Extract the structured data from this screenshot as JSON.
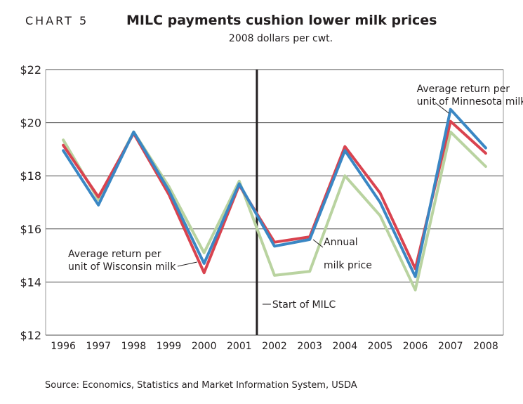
{
  "header": {
    "chart_label": "CHART 5",
    "title": "MILC payments cushion lower milk prices",
    "subtitle": "2008 dollars per cwt."
  },
  "source": "Source: Economics, Statistics and Market Information System, USDA",
  "annotations": {
    "minnesota": [
      "Average return per",
      "unit of Minnesota milk"
    ],
    "wisconsin": [
      "Average return per",
      "unit of Wisconsin milk"
    ],
    "annual": [
      "Annual",
      "milk price"
    ],
    "milc": "Start of MILC"
  },
  "colors": {
    "minnesota": "#3a87c4",
    "wisconsin": "#d9434f",
    "annual": "#b9d3a0",
    "milc_line": "#231f20",
    "grid": "#4d4d4d",
    "plot_border": "#9a9a9a"
  },
  "chart_data": {
    "type": "line",
    "x": [
      "1996",
      "1997",
      "1998",
      "1999",
      "2000",
      "2001",
      "2002",
      "2003",
      "2004",
      "2005",
      "2006",
      "2007",
      "2008"
    ],
    "ylim": [
      12,
      22
    ],
    "ytick_labels": [
      "$12",
      "$14",
      "$16",
      "$18",
      "$20",
      "$22"
    ],
    "yticks": [
      12,
      14,
      16,
      18,
      20,
      22
    ],
    "grid": true,
    "event_marker": {
      "between": [
        "2001",
        "2002"
      ],
      "label": "Start of MILC"
    },
    "series": [
      {
        "key": "annual",
        "values": [
          19.35,
          17.1,
          19.65,
          17.6,
          15.1,
          17.8,
          14.25,
          14.4,
          18.0,
          16.5,
          13.7,
          19.65,
          18.35
        ]
      },
      {
        "key": "wisconsin",
        "values": [
          19.15,
          17.2,
          19.6,
          17.3,
          14.35,
          17.65,
          15.5,
          15.7,
          19.1,
          17.35,
          14.5,
          20.05,
          18.85
        ]
      },
      {
        "key": "minnesota",
        "values": [
          18.95,
          16.9,
          19.65,
          17.45,
          14.7,
          17.7,
          15.35,
          15.6,
          18.95,
          17.0,
          14.2,
          20.5,
          19.05
        ]
      }
    ]
  }
}
